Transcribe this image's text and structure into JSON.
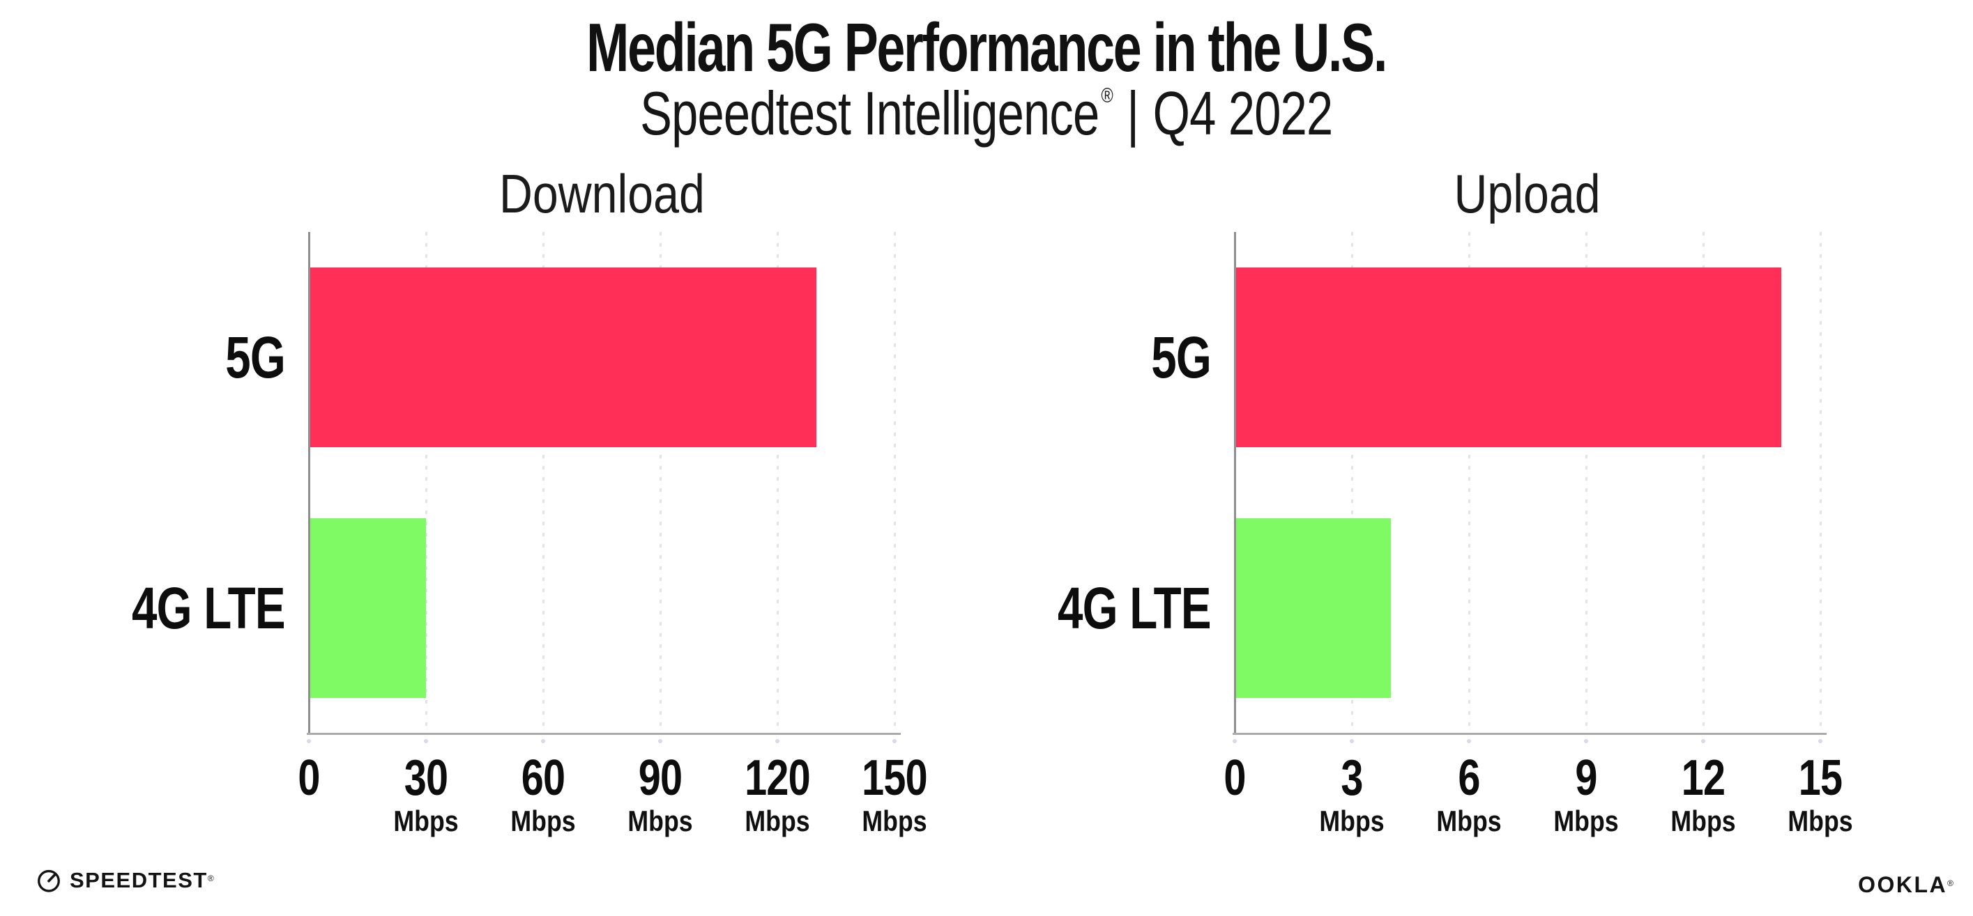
{
  "header": {
    "title": "Median 5G Performance in the U.S.",
    "subtitle": {
      "brand": "Speedtest Intelligence",
      "registered_mark": "®",
      "separator": "|",
      "period": "Q4 2022"
    }
  },
  "chart_data": [
    {
      "type": "bar",
      "orientation": "horizontal",
      "title": "Download",
      "categories": [
        "5G",
        "4G LTE"
      ],
      "values": [
        130,
        30
      ],
      "unit": "Mbps",
      "xlim": [
        0,
        150
      ],
      "ticks": [
        0,
        30,
        60,
        90,
        120,
        150
      ],
      "bar_colors": [
        "#FF2F57",
        "#80FA64"
      ],
      "grid": "dotted vertical gridlines at each tick",
      "legend": "none"
    },
    {
      "type": "bar",
      "orientation": "horizontal",
      "title": "Upload",
      "categories": [
        "5G",
        "4G LTE"
      ],
      "values": [
        14,
        4
      ],
      "unit": "Mbps",
      "xlim": [
        0,
        15
      ],
      "ticks": [
        0,
        3,
        6,
        9,
        12,
        15
      ],
      "bar_colors": [
        "#FF2F57",
        "#80FA64"
      ],
      "grid": "dotted vertical gridlines at each tick",
      "legend": "none"
    }
  ],
  "footer": {
    "speedtest_wordmark": "SPEEDTEST",
    "speedtest_mark": "®",
    "ookla_wordmark": "OOKLA",
    "ookla_mark": "®"
  },
  "colors": {
    "bar_5g": "#FF2F57",
    "bar_4g_lte": "#80FA64",
    "axis_line": "#ABABAB",
    "gridline": "#E0E1EA",
    "text": "#111111",
    "background": "#FFFFFF"
  }
}
